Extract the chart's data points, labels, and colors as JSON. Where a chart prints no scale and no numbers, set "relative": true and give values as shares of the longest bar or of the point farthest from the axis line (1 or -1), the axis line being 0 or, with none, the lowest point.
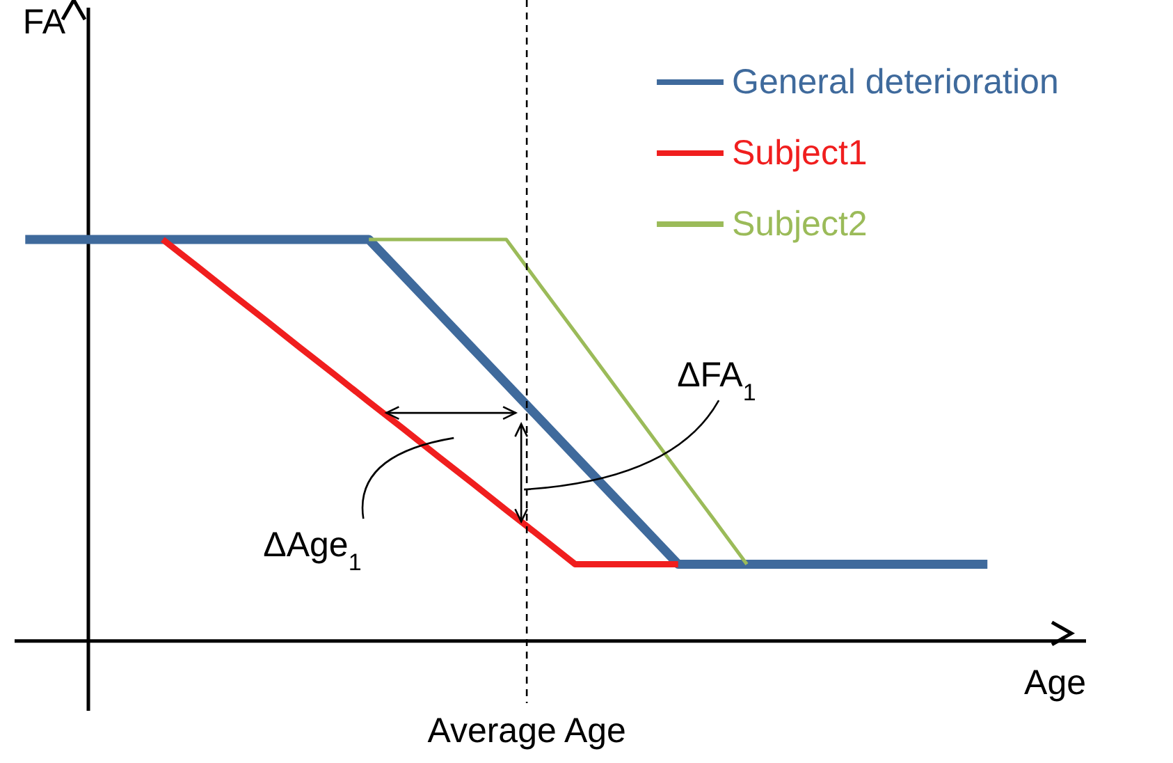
{
  "chart_data": {
    "type": "line",
    "relative": true,
    "xlabel": "Age",
    "legend": "top right",
    "categories": [
      null,
      null,
      null,
      null,
      null,
      null,
      null,
      null,
      null,
      null,
      null,
      null,
      null,
      null,
      null,
      null,
      null,
      null,
      null,
      null,
      null,
      null,
      null,
      null,
      null,
      null,
      null,
      null,
      null
    ],
    "series": [
      {
        "name": "General deterioration",
        "color": "#3f6a9c",
        "values": [
          1,
          1,
          1,
          1,
          1,
          1,
          1,
          1,
          1,
          1,
          1,
          0.91,
          0.82,
          0.73,
          0.64,
          0.55,
          0.46,
          0.37,
          0.28,
          0.19,
          0.19,
          0.19,
          0.19,
          0.19,
          0.19,
          0.19,
          0.19,
          0.19,
          0.19
        ]
      },
      {
        "name": "Subject1",
        "color": "#f01e1e",
        "values": [
          null,
          null,
          null,
          null,
          1,
          0.933,
          0.865,
          0.798,
          0.73,
          0.663,
          0.595,
          0.528,
          0.46,
          0.393,
          0.325,
          0.258,
          0.19,
          0.19,
          0.19,
          0.19,
          null,
          null,
          null,
          null,
          null,
          null,
          null,
          null,
          null
        ]
      },
      {
        "name": "Subject2",
        "color": "#9bbb59",
        "values": [
          null,
          null,
          null,
          null,
          null,
          null,
          null,
          null,
          null,
          null,
          1,
          1,
          1,
          1,
          1,
          0.884,
          0.769,
          0.653,
          0.537,
          0.421,
          0.306,
          0.19,
          null,
          null,
          null,
          null,
          null,
          null,
          null
        ]
      }
    ],
    "annotations": [
      "ΔFA$_{1}$",
      "ΔAge$_{1}$",
      "Average Age",
      "FA"
    ]
  }
}
